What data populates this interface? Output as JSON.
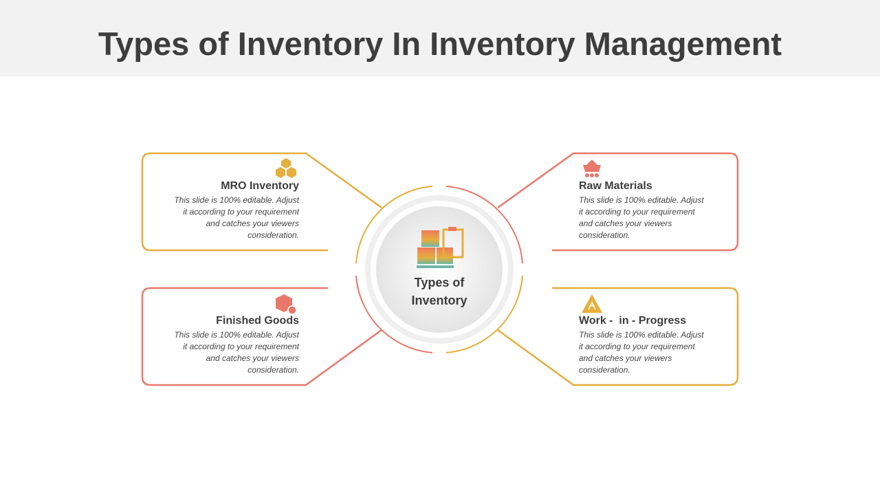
{
  "title": "Types of Inventory In Inventory Management",
  "center": {
    "label_line1": "Types of",
    "label_line2": "Inventory",
    "icon": "inventory-boxes-clipboard-icon"
  },
  "colors": {
    "yellow": "#E6AE3C",
    "red": "#E8786A",
    "text": "#3d3d3d"
  },
  "cards": [
    {
      "title": "MRO Inventory",
      "body": "This slide is 100% editable. Adjust it according to your requirement and catches your viewers consideration.",
      "icon": "stacked-boxes-icon",
      "color": "#E6AE3C"
    },
    {
      "title": "Raw Materials",
      "body": "This slide is 100% editable. Adjust it according to your requirement and catches your viewers consideration.",
      "icon": "mine-cart-icon",
      "color": "#E8786A"
    },
    {
      "title": "Finished Goods",
      "body": "This slide is 100% editable. Adjust it according to your requirement and catches your viewers consideration.",
      "icon": "box-check-icon",
      "color": "#E8786A"
    },
    {
      "title": "Work -  in - Progress",
      "body": "This slide is 100% editable. Adjust it according to your requirement and catches your viewers consideration.",
      "icon": "construction-sign-icon",
      "color": "#E6AE3C"
    }
  ]
}
